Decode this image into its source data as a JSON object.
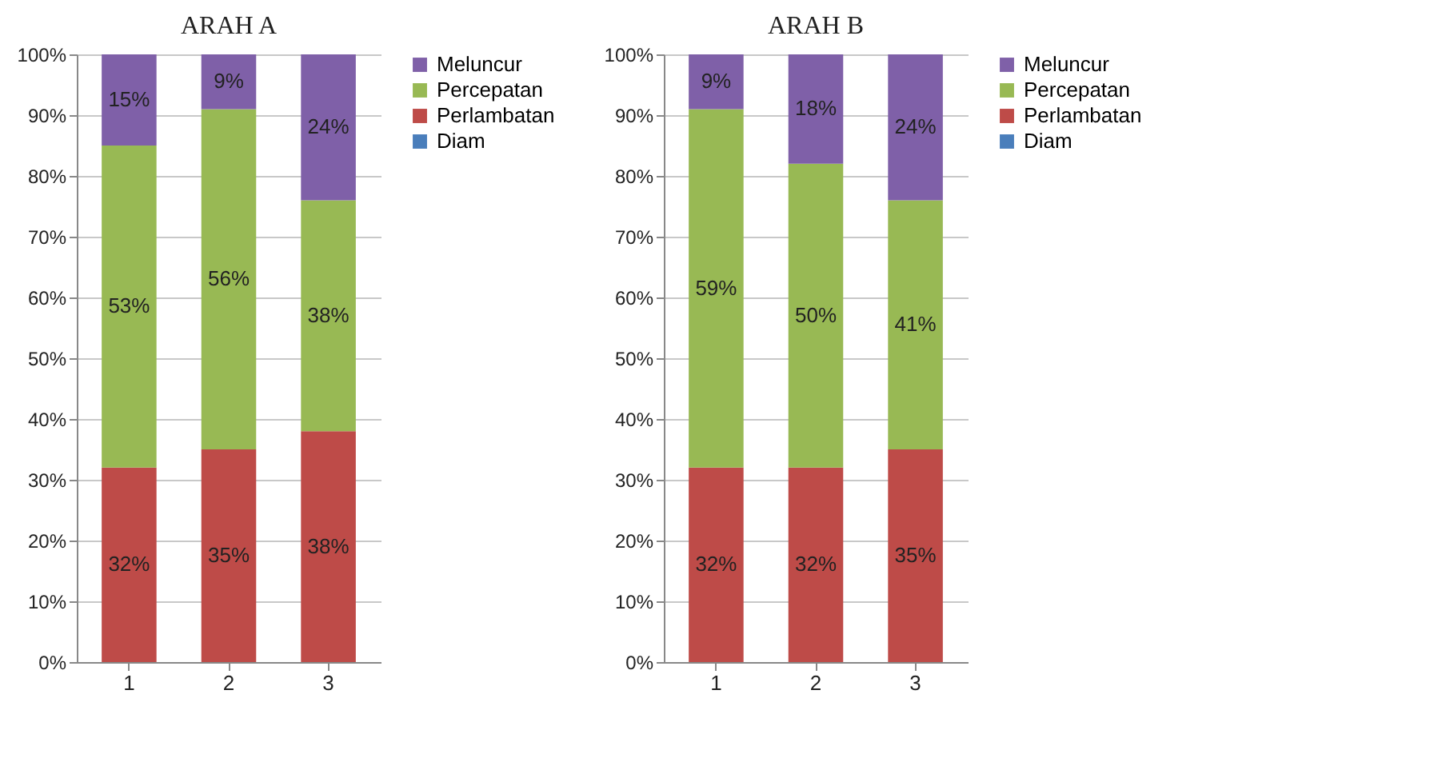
{
  "chart_data": [
    {
      "type": "bar",
      "title": "ARAH A",
      "categories": [
        "1",
        "2",
        "3"
      ],
      "stacked": true,
      "ylim": [
        0,
        100
      ],
      "yticks": [
        {
          "value": 0,
          "label": "0%"
        },
        {
          "value": 10,
          "label": "10%"
        },
        {
          "value": 20,
          "label": "20%"
        },
        {
          "value": 30,
          "label": "30%"
        },
        {
          "value": 40,
          "label": "40%"
        },
        {
          "value": 50,
          "label": "50%"
        },
        {
          "value": 60,
          "label": "60%"
        },
        {
          "value": 70,
          "label": "70%"
        },
        {
          "value": 80,
          "label": "80%"
        },
        {
          "value": 90,
          "label": "90%"
        },
        {
          "value": 100,
          "label": "100%"
        }
      ],
      "grid": "y",
      "legend": "right",
      "series": [
        {
          "name": "Diam",
          "color": "#4a7ebb",
          "values": [
            0,
            0,
            0
          ],
          "value_labels": [
            null,
            null,
            null
          ]
        },
        {
          "name": "Perlambatan",
          "color": "#be4b48",
          "values": [
            32,
            35,
            38
          ],
          "value_labels": [
            "32%",
            "35%",
            "38%"
          ]
        },
        {
          "name": "Percepatan",
          "color": "#98b954",
          "values": [
            53,
            56,
            38
          ],
          "value_labels": [
            "53%",
            "56%",
            "38%"
          ]
        },
        {
          "name": "Meluncur",
          "color": "#7f60a8",
          "values": [
            15,
            9,
            24
          ],
          "value_labels": [
            "15%",
            "9%",
            "24%"
          ]
        }
      ]
    },
    {
      "type": "bar",
      "title": "ARAH B",
      "categories": [
        "1",
        "2",
        "3"
      ],
      "stacked": true,
      "ylim": [
        0,
        100
      ],
      "yticks": [
        {
          "value": 0,
          "label": "0%"
        },
        {
          "value": 10,
          "label": "10%"
        },
        {
          "value": 20,
          "label": "20%"
        },
        {
          "value": 30,
          "label": "30%"
        },
        {
          "value": 40,
          "label": "40%"
        },
        {
          "value": 50,
          "label": "50%"
        },
        {
          "value": 60,
          "label": "60%"
        },
        {
          "value": 70,
          "label": "70%"
        },
        {
          "value": 80,
          "label": "80%"
        },
        {
          "value": 90,
          "label": "90%"
        },
        {
          "value": 100,
          "label": "100%"
        }
      ],
      "grid": "y",
      "legend": "right",
      "series": [
        {
          "name": "Diam",
          "color": "#4a7ebb",
          "values": [
            0,
            0,
            0
          ],
          "value_labels": [
            null,
            null,
            null
          ]
        },
        {
          "name": "Perlambatan",
          "color": "#be4b48",
          "values": [
            32,
            32,
            35
          ],
          "value_labels": [
            "32%",
            "32%",
            "35%"
          ]
        },
        {
          "name": "Percepatan",
          "color": "#98b954",
          "values": [
            59,
            50,
            41
          ],
          "value_labels": [
            "59%",
            "50%",
            "41%"
          ]
        },
        {
          "name": "Meluncur",
          "color": "#7f60a8",
          "values": [
            9,
            18,
            24
          ],
          "value_labels": [
            "9%",
            "18%",
            "24%"
          ]
        }
      ]
    }
  ]
}
